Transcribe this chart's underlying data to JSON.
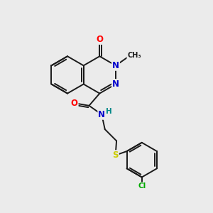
{
  "background_color": "#ebebeb",
  "bond_color": "#1a1a1a",
  "atom_colors": {
    "O": "#ff0000",
    "N": "#0000cc",
    "S": "#cccc00",
    "Cl": "#00aa00",
    "H": "#008888",
    "C": "#1a1a1a"
  },
  "lw": 1.4
}
